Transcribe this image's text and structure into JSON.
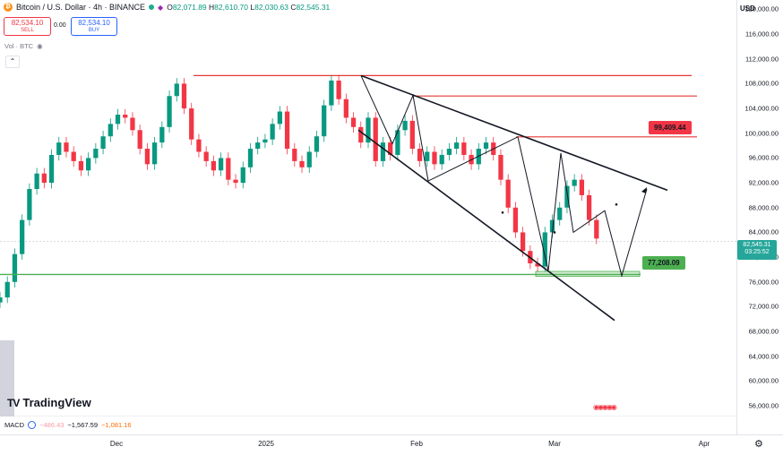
{
  "header": {
    "title": "Bitcoin / U.S. Dollar · 4h · BINANCE",
    "ohlc": {
      "o_label": "O",
      "o": "82,071.89",
      "h_label": "H",
      "h": "82,610.70",
      "l_label": "L",
      "l": "82,030.63",
      "c_label": "C",
      "c": "82,545.31"
    }
  },
  "trade": {
    "sell_price": "82,534.10",
    "sell_label": "SELL",
    "spread": "0.00",
    "buy_price": "82,534.10",
    "buy_label": "BUY"
  },
  "volume_label": "Vol · BTC",
  "currency": "USD",
  "current_price": {
    "value": "82,545.31",
    "countdown": "03:25:52"
  },
  "annotations": {
    "resistance_label": "99,409.44",
    "support_label": "77,208.09"
  },
  "brand": "TradingView",
  "macd": {
    "label": "MACD",
    "v1": "−486.43",
    "v2": "−1,567.59",
    "v3": "−1,081.16"
  },
  "colors": {
    "up": "#089981",
    "down": "#f23645",
    "trend_red": "#e53935",
    "support": "#4caf50",
    "teal": "#26a69a"
  },
  "chart_data": {
    "type": "line",
    "title": "Bitcoin / U.S. Dollar · 4h · BINANCE",
    "y_ticks": [
      "120,000.00",
      "116,000.00",
      "112,000.00",
      "108,000.00",
      "104,000.00",
      "100,000.00",
      "96,000.00",
      "92,000.00",
      "88,000.00",
      "84,000.00",
      "80,000.00",
      "76,000.00",
      "72,000.00",
      "68,000.00",
      "64,000.00",
      "60,000.00",
      "56,000.00"
    ],
    "y_tick_values": [
      120000,
      116000,
      112000,
      108000,
      104000,
      100000,
      96000,
      92000,
      88000,
      84000,
      80000,
      76000,
      72000,
      68000,
      64000,
      60000,
      56000
    ],
    "x_ticks": [
      "Dec",
      "2025",
      "Feb",
      "Mar",
      "Apr"
    ],
    "x_tick_index": [
      0.0,
      0.23,
      0.43,
      0.66,
      0.9
    ],
    "ylim": [
      54000,
      121500
    ],
    "grid": false,
    "series": [
      {
        "x": [
          0,
          0.01,
          0.02,
          0.03,
          0.04,
          0.05,
          0.06,
          0.07,
          0.08,
          0.09,
          0.1,
          0.11,
          0.12,
          0.13,
          0.14,
          0.15,
          0.16,
          0.17,
          0.18,
          0.19,
          0.2,
          0.21,
          0.22,
          0.23,
          0.24,
          0.25,
          0.26,
          0.27,
          0.28,
          0.29,
          0.3,
          0.31,
          0.32,
          0.33,
          0.34,
          0.35,
          0.36,
          0.37,
          0.38,
          0.39,
          0.4,
          0.41,
          0.42,
          0.43,
          0.44,
          0.45,
          0.46,
          0.47,
          0.48,
          0.49,
          0.5,
          0.51,
          0.52,
          0.53,
          0.54,
          0.55,
          0.56,
          0.57,
          0.58,
          0.59,
          0.6,
          0.61,
          0.62,
          0.63,
          0.64,
          0.65,
          0.66,
          0.67,
          0.68,
          0.69,
          0.7,
          0.71,
          0.72,
          0.73,
          0.74,
          0.75,
          0.76,
          0.77,
          0.78,
          0.79,
          0.8,
          0.81
        ],
        "values": [
          73500,
          76000,
          80500,
          86000,
          91000,
          93500,
          92000,
          96500,
          98500,
          97000,
          95500,
          94000,
          96000,
          97500,
          99500,
          101500,
          103000,
          102500,
          100500,
          97500,
          95000,
          98500,
          101000,
          106000,
          108000,
          104000,
          99000,
          97000,
          95500,
          94000,
          96000,
          92500,
          92000,
          94500,
          97500,
          98500,
          99000,
          101500,
          103500,
          97500,
          95500,
          94500,
          97000,
          99500,
          104500,
          108500,
          105500,
          102500,
          101000,
          98500,
          102500,
          95500,
          98500,
          96500,
          100500,
          102000,
          97500,
          95500,
          97000,
          95000,
          96500,
          97500,
          98500,
          96500,
          95000,
          97500,
          98500,
          96500,
          92500,
          88000,
          84000,
          81000,
          79000,
          78500,
          84000,
          86000,
          88000,
          91500,
          92500,
          90000,
          86000,
          83000
        ]
      }
    ]
  }
}
